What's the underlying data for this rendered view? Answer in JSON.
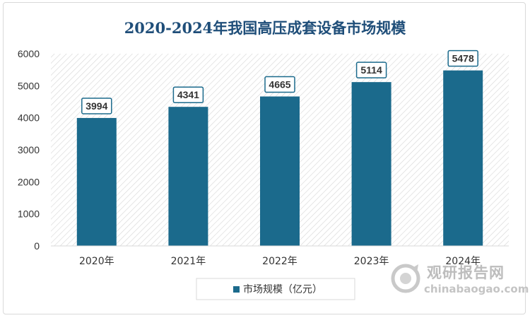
{
  "chart_data": {
    "type": "bar",
    "title": "2020-2024年我国高压成套设备市场规模",
    "categories": [
      "2020年",
      "2021年",
      "2022年",
      "2023年",
      "2024年"
    ],
    "series": [
      {
        "name": "市场规模（亿元）",
        "values": [
          3994,
          4341,
          4665,
          5114,
          5478
        ]
      }
    ],
    "data_labels": [
      "3994",
      "4341",
      "4665",
      "5114",
      "5478"
    ],
    "y_ticks": [
      "0",
      "1000",
      "2000",
      "3000",
      "4000",
      "5000",
      "6000"
    ],
    "ylim": [
      0,
      6000
    ],
    "xlabel": "",
    "ylabel": "",
    "legend_position": "bottom",
    "grid": false,
    "plot_background": "diagonal-hatch",
    "bar_color": "#1b6a8c"
  },
  "watermark": {
    "text_cn": "观研报告网",
    "text_en": "chinabaogao.com"
  }
}
